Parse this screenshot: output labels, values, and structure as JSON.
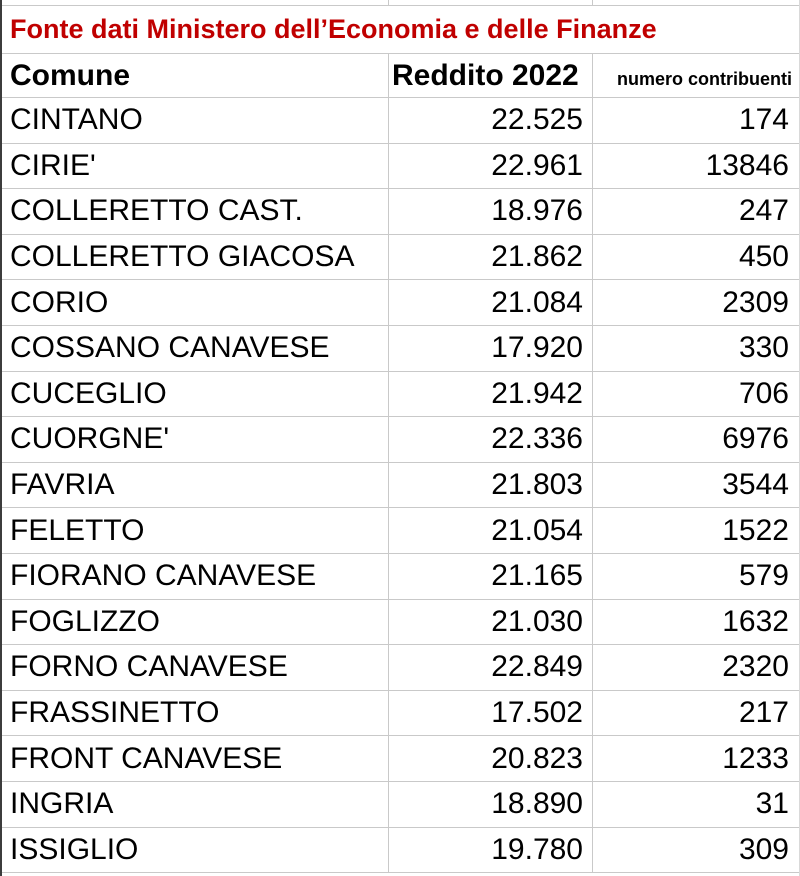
{
  "title": "Fonte dati Ministero dell’Economia e delle Finanze",
  "table": {
    "headers": {
      "comune": "Comune",
      "reddito": "Reddito 2022",
      "contribuenti": "numero contribuenti"
    },
    "rows": [
      [
        "CINTANO",
        "22.525",
        "174"
      ],
      [
        "CIRIE'",
        "22.961",
        "13846"
      ],
      [
        "COLLERETTO CAST.",
        "18.976",
        "247"
      ],
      [
        "COLLERETTO GIACOSA",
        "21.862",
        "450"
      ],
      [
        "CORIO",
        "21.084",
        "2309"
      ],
      [
        "COSSANO CANAVESE",
        "17.920",
        "330"
      ],
      [
        "CUCEGLIO",
        "21.942",
        "706"
      ],
      [
        "CUORGNE'",
        "22.336",
        "6976"
      ],
      [
        "FAVRIA",
        "21.803",
        "3544"
      ],
      [
        "FELETTO",
        "21.054",
        "1522"
      ],
      [
        "FIORANO CANAVESE",
        "21.165",
        "579"
      ],
      [
        "FOGLIZZO",
        "21.030",
        "1632"
      ],
      [
        "FORNO CANAVESE",
        "22.849",
        "2320"
      ],
      [
        "FRASSINETTO",
        "17.502",
        "217"
      ],
      [
        "FRONT CANAVESE",
        "20.823",
        "1233"
      ],
      [
        "INGRIA",
        "18.890",
        "31"
      ],
      [
        "ISSIGLIO",
        "19.780",
        "309"
      ]
    ]
  },
  "chart_data": {
    "type": "table",
    "title": "Fonte dati Ministero dell’Economia e delle Finanze",
    "columns": [
      "Comune",
      "Reddito 2022",
      "numero contribuenti"
    ],
    "categories": [
      "CINTANO",
      "CIRIE'",
      "COLLERETTO CAST.",
      "COLLERETTO GIACOSA",
      "CORIO",
      "COSSANO CANAVESE",
      "CUCEGLIO",
      "CUORGNE'",
      "FAVRIA",
      "FELETTO",
      "FIORANO CANAVESE",
      "FOGLIZZO",
      "FORNO CANAVESE",
      "FRASSINETTO",
      "FRONT CANAVESE",
      "INGRIA",
      "ISSIGLIO"
    ],
    "series": [
      {
        "name": "Reddito 2022",
        "values": [
          22525,
          22961,
          18976,
          21862,
          21084,
          17920,
          21942,
          22336,
          21803,
          21054,
          21165,
          21030,
          22849,
          17502,
          20823,
          18890,
          19780
        ]
      },
      {
        "name": "numero contribuenti",
        "values": [
          174,
          13846,
          247,
          450,
          2309,
          330,
          706,
          6976,
          3544,
          1522,
          579,
          1632,
          2320,
          217,
          1233,
          31,
          309
        ]
      }
    ]
  },
  "colors": {
    "title_red": "#c00000",
    "gridline": "#c9c9c9",
    "left_border": "#3c3c3c",
    "text": "#000000",
    "bg": "#ffffff"
  }
}
